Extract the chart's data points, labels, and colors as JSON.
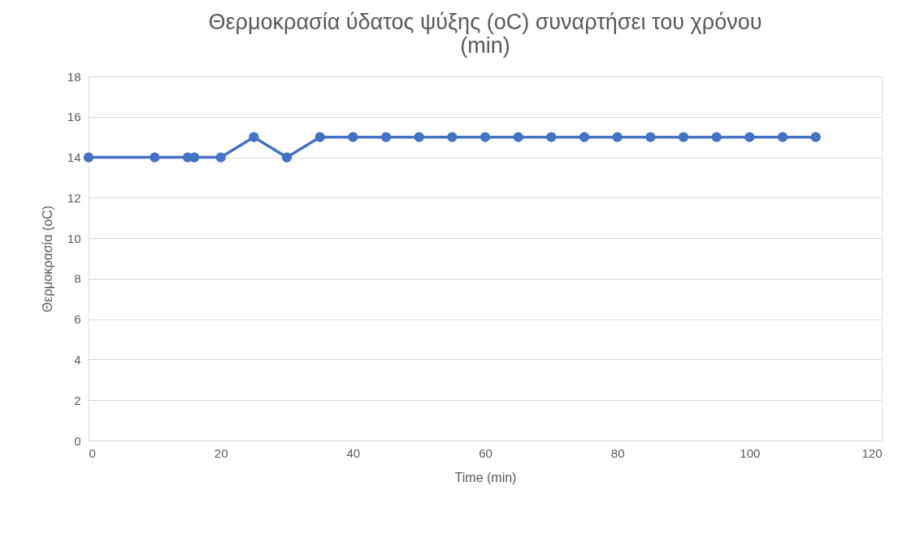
{
  "chart_data": {
    "type": "line",
    "title": "Θερμοκρασία ύδατος ψύξης (oC) συναρτήσει του χρόνου (min)",
    "xlabel": "Time (min)",
    "ylabel": "Θερμοκρασία (oC)",
    "x": [
      0,
      10,
      15,
      16,
      20,
      25,
      30,
      35,
      40,
      45,
      50,
      55,
      60,
      65,
      70,
      75,
      80,
      85,
      90,
      95,
      100,
      105,
      110
    ],
    "series": [
      {
        "color": "#4472c4",
        "values": [
          14,
          14,
          14,
          14,
          14,
          15,
          14,
          15,
          15,
          15,
          15,
          15,
          15,
          15,
          15,
          15,
          15,
          15,
          15,
          15,
          15,
          15,
          15
        ]
      }
    ],
    "xlim": [
      0,
      120
    ],
    "xticks": [
      0,
      20,
      40,
      60,
      80,
      100,
      120
    ],
    "ylim": [
      0,
      18
    ],
    "yticks": [
      0,
      2,
      4,
      6,
      8,
      10,
      12,
      14,
      16,
      18
    ],
    "grid": "y",
    "marker": "circle",
    "line_style": "solid"
  }
}
